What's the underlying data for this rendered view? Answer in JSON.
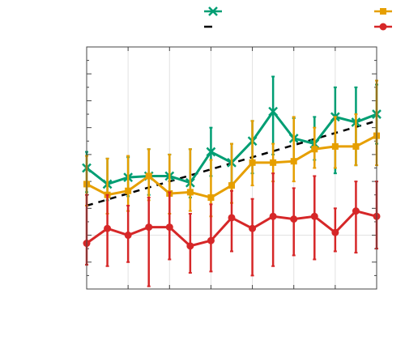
{
  "chart_data": {
    "type": "line",
    "title": "",
    "xlabel": "",
    "ylabel": "",
    "xlim": [
      0,
      14
    ],
    "ylim": [
      -2,
      7
    ],
    "x": [
      0,
      1,
      2,
      3,
      4,
      5,
      6,
      7,
      8,
      9,
      10,
      11,
      12,
      13,
      14
    ],
    "grid": "vertical",
    "legend_position": "top",
    "series": [
      {
        "name": "",
        "kind": "dashed-line",
        "color": "#000000",
        "x": [
          0,
          14
        ],
        "y": [
          1.1,
          4.25
        ]
      },
      {
        "name": "",
        "marker": "x",
        "color": "#009e73",
        "y": [
          2.5,
          1.9,
          2.15,
          2.2,
          2.2,
          1.95,
          3.1,
          2.7,
          3.5,
          4.6,
          3.6,
          3.4,
          4.4,
          4.2,
          4.5
        ],
        "lo": [
          1.6,
          1.3,
          1.45,
          1.5,
          1.55,
          1.4,
          2.2,
          1.95,
          2.3,
          3.0,
          2.8,
          2.8,
          2.3,
          2.6,
          3.4
        ],
        "hi": [
          3.1,
          2.85,
          2.9,
          3.2,
          3.0,
          3.2,
          4.0,
          3.4,
          4.25,
          5.9,
          4.35,
          4.4,
          5.5,
          5.5,
          5.6
        ]
      },
      {
        "name": "",
        "marker": "square",
        "color": "#e69f00",
        "y": [
          1.9,
          1.5,
          1.65,
          2.2,
          1.55,
          1.6,
          1.4,
          1.85,
          2.7,
          2.7,
          2.75,
          3.2,
          3.3,
          3.3,
          3.7
        ],
        "lo": [
          1.1,
          0.8,
          0.9,
          1.3,
          0.8,
          0.9,
          0.7,
          1.2,
          1.85,
          2.0,
          2.0,
          2.5,
          2.5,
          2.6,
          2.6
        ],
        "hi": [
          2.95,
          2.85,
          2.95,
          3.2,
          3.0,
          3.2,
          2.8,
          3.4,
          4.25,
          3.4,
          4.4,
          4.0,
          4.4,
          4.5,
          5.75
        ]
      },
      {
        "name": "",
        "marker": "circle",
        "color": "#d62728",
        "y": [
          -0.3,
          0.25,
          0.0,
          0.3,
          0.3,
          -0.4,
          -0.2,
          0.65,
          0.25,
          0.7,
          0.6,
          0.7,
          0.1,
          0.9,
          0.7
        ],
        "lo": [
          -1.1,
          -1.15,
          -1.0,
          -1.9,
          -0.9,
          -1.4,
          -1.35,
          -0.6,
          -1.5,
          -1.15,
          -0.75,
          -0.9,
          -0.6,
          -0.65,
          -0.5
        ],
        "hi": [
          1.5,
          1.5,
          1.1,
          1.4,
          1.6,
          0.8,
          1.15,
          1.65,
          1.35,
          2.3,
          1.75,
          2.2,
          1.0,
          2.0,
          2.0
        ]
      }
    ]
  },
  "legend": {
    "entries": [
      {
        "label": "",
        "marker": "x",
        "color": "#009e73"
      },
      {
        "label": "",
        "marker": "square",
        "color": "#e69f00"
      },
      {
        "label": "",
        "marker": "dash",
        "color": "#000000"
      },
      {
        "label": "",
        "marker": "circle",
        "color": "#d62728"
      }
    ]
  }
}
